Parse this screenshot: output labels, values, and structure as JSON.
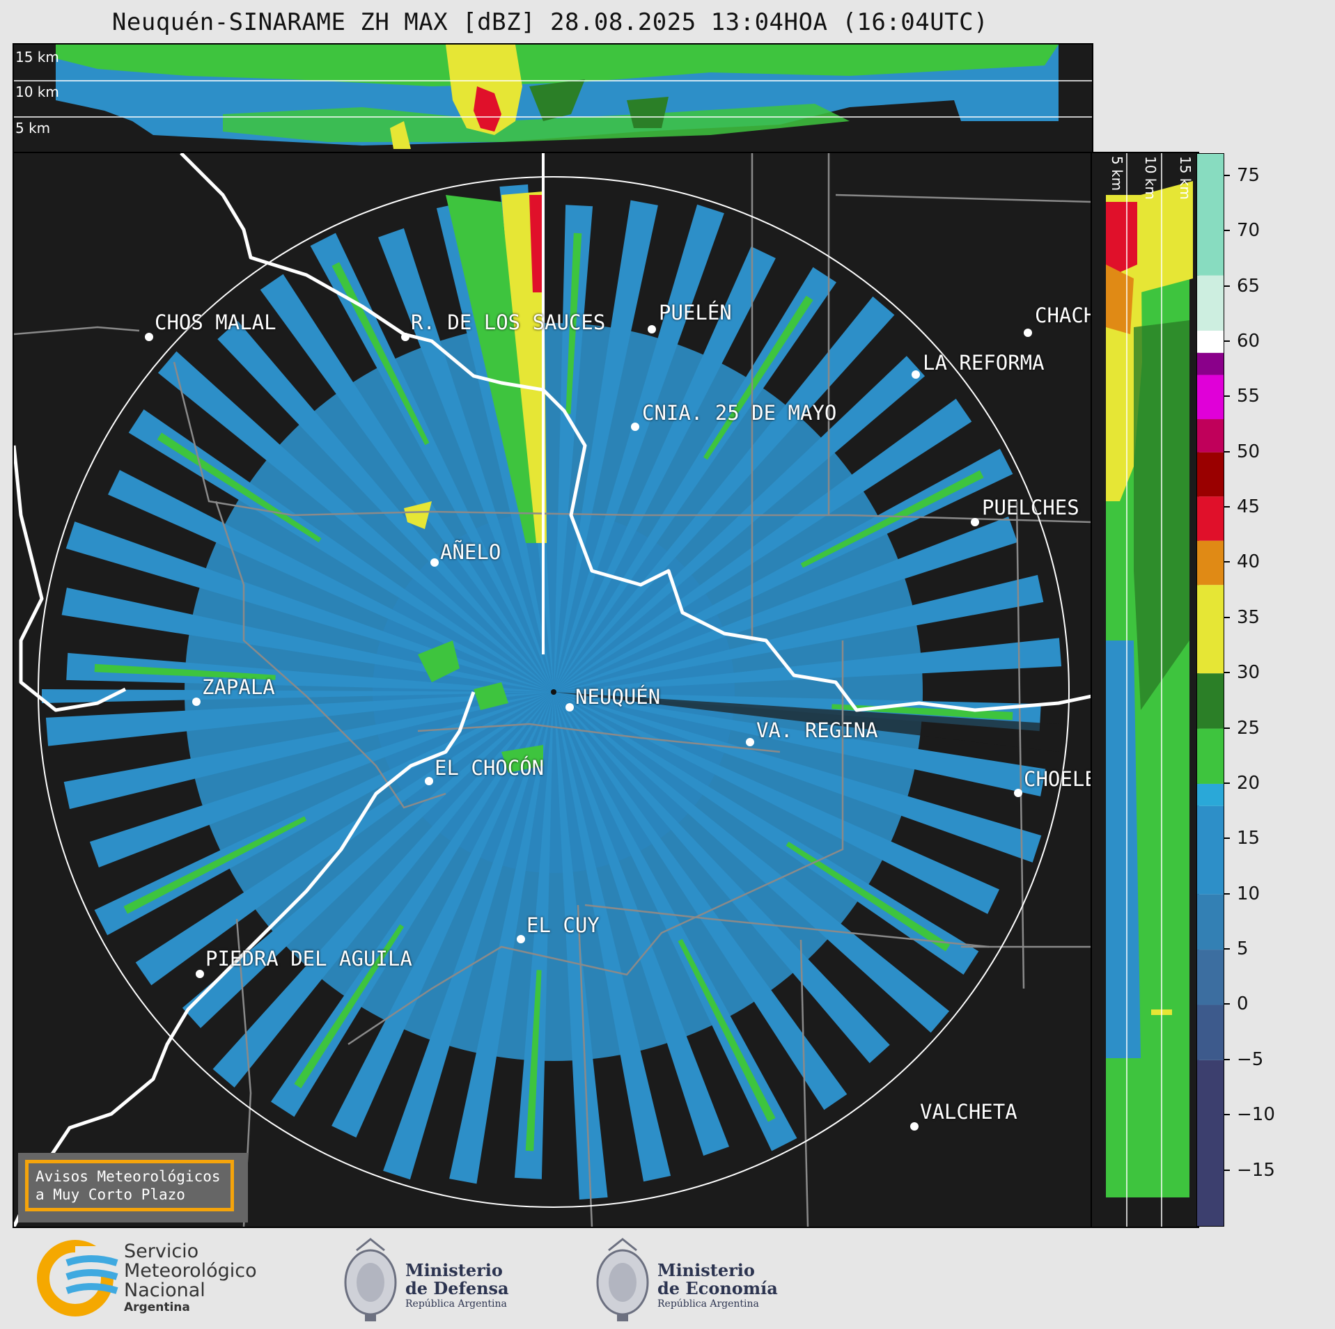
{
  "title": "Neuquén-SINARAME ZH MAX [dBZ] 28.08.2025 13:04HOA (16:04UTC)",
  "top_panel": {
    "altitude_labels": [
      "15 km",
      "10 km",
      "5 km"
    ]
  },
  "right_panel": {
    "altitude_labels": [
      "5 km",
      "10 km",
      "15 km"
    ]
  },
  "colorbar": {
    "unit": "dBZ",
    "ticks": [
      "75",
      "70",
      "65",
      "60",
      "55",
      "50",
      "45",
      "40",
      "35",
      "30",
      "25",
      "20",
      "15",
      "10",
      "5",
      "0",
      "−10",
      "−15"
    ],
    "tick_values": [
      75,
      70,
      65,
      60,
      55,
      50,
      45,
      40,
      35,
      30,
      25,
      20,
      15,
      10,
      5,
      0,
      -10,
      -15
    ],
    "extra_tick": "−5",
    "range": [
      -20,
      77
    ],
    "colors": {
      "dark": "#3c3f6e",
      "blue": "#2d8fc8",
      "green": "#3ec43e",
      "dark_green": "#2b7f27",
      "yellow": "#e6e635",
      "orange": "#e08a15",
      "red": "#e0102a",
      "dark_red": "#9a0000",
      "magenta": "#e000d8",
      "purple": "#8a008a",
      "white": "#ffffff",
      "mint": "#88dcc0"
    }
  },
  "map": {
    "cities": [
      {
        "name": "CHOS MALAL"
      },
      {
        "name": "R. DE LOS SAUCES"
      },
      {
        "name": "PUELÉN"
      },
      {
        "name": "CHACH"
      },
      {
        "name": "LA REFORMA"
      },
      {
        "name": "CNIA. 25 DE MAYO"
      },
      {
        "name": "PUELCHES"
      },
      {
        "name": "AÑELO"
      },
      {
        "name": "NEUQUÉN"
      },
      {
        "name": "ZAPALA"
      },
      {
        "name": "VA. REGINA"
      },
      {
        "name": "EL CHOCÓN"
      },
      {
        "name": "CHOELE"
      },
      {
        "name": "EL CUY"
      },
      {
        "name": "PIEDRA DEL AGUILA"
      },
      {
        "name": "VALCHETA"
      }
    ]
  },
  "aviso": {
    "line1": "Avisos Meteorológicos",
    "line2": "a Muy Corto Plazo"
  },
  "logos": {
    "smn": {
      "line1": "Servicio",
      "line2": "Meteorológico",
      "line3": "Nacional",
      "line4": "Argentina"
    },
    "defensa": {
      "line1": "Ministerio",
      "line2": "de Defensa",
      "line3": "República Argentina"
    },
    "economia": {
      "line1": "Ministerio",
      "line2": "de Economía",
      "line3": "República Argentina"
    }
  }
}
